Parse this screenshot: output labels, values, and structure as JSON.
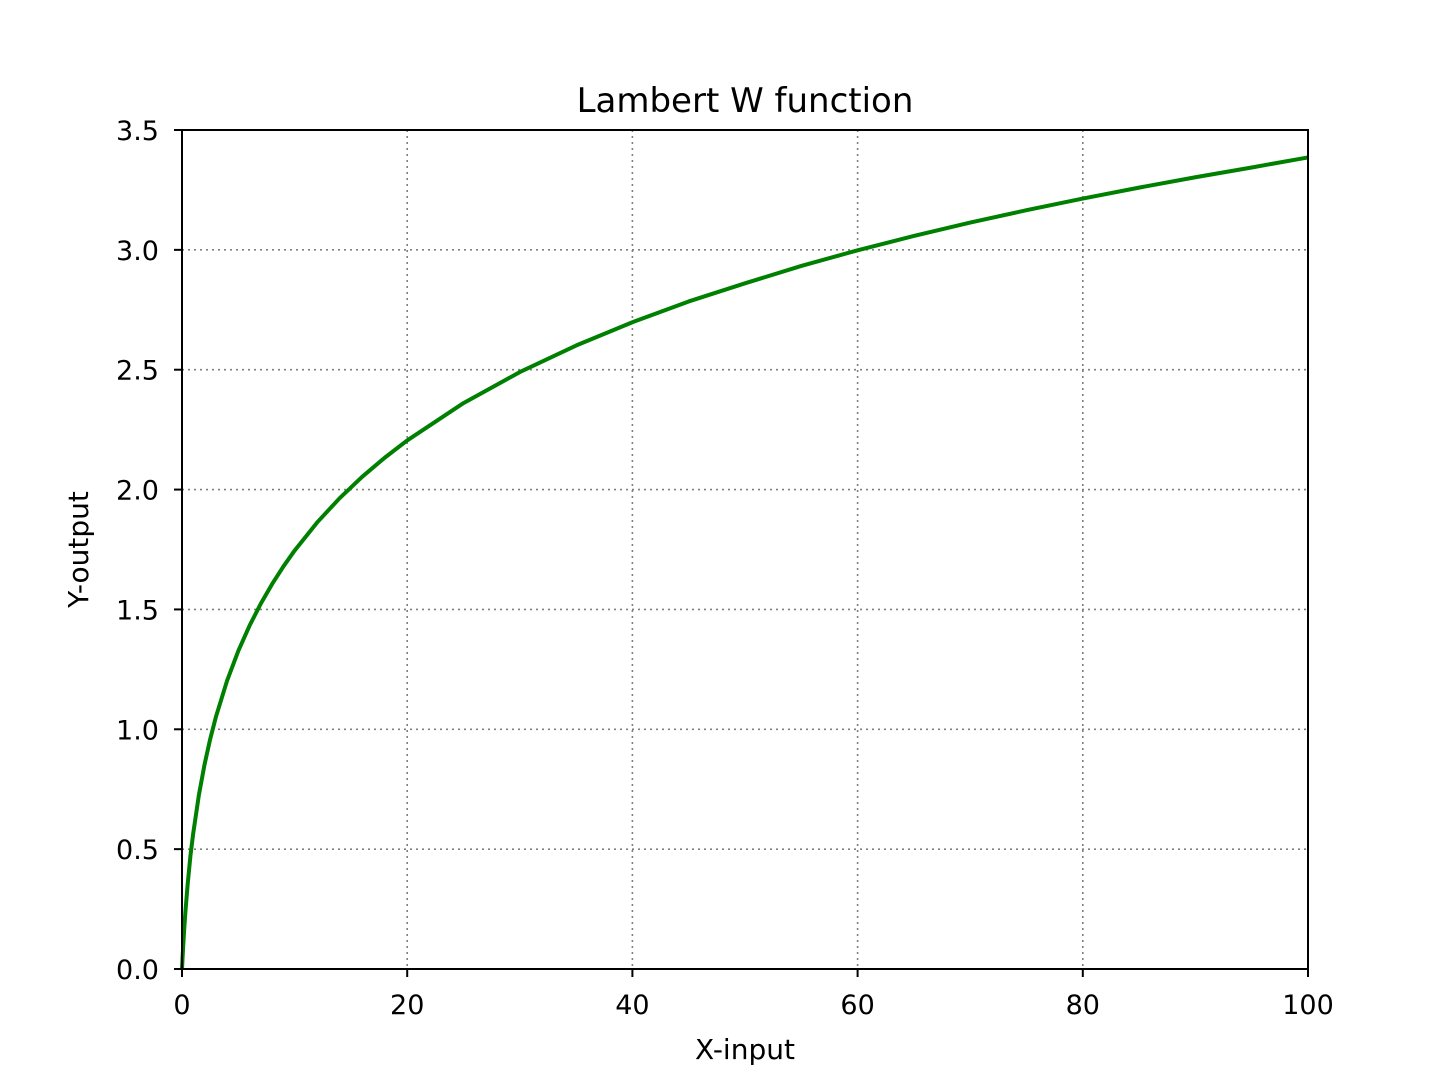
{
  "chart_data": {
    "type": "line",
    "title": "Lambert W function",
    "xlabel": "X-input",
    "ylabel": "Y-output",
    "xlim": [
      0,
      100
    ],
    "ylim": [
      0,
      3.5
    ],
    "xticks": [
      0,
      20,
      40,
      60,
      80,
      100
    ],
    "xtick_labels": [
      "0",
      "20",
      "40",
      "60",
      "80",
      "100"
    ],
    "yticks": [
      0,
      0.5,
      1,
      1.5,
      2,
      2.5,
      3,
      3.5
    ],
    "ytick_labels": [
      "0.0",
      "0.5",
      "1.0",
      "1.5",
      "2.0",
      "2.5",
      "3.0",
      "3.5"
    ],
    "grid": true,
    "grid_style": "dotted",
    "series": [
      {
        "color": "#008000",
        "x": [
          0,
          0.05,
          0.1,
          0.2,
          0.3,
          0.5,
          0.75,
          1,
          1.5,
          2,
          2.5,
          3,
          4,
          5,
          6,
          7,
          8,
          9,
          10,
          12,
          14,
          16,
          18,
          20,
          25,
          30,
          35,
          40,
          45,
          50,
          55,
          60,
          65,
          70,
          75,
          80,
          85,
          90,
          95,
          100
        ],
        "y": [
          0,
          0.0477,
          0.0913,
          0.1689,
          0.2368,
          0.3517,
          0.4728,
          0.5671,
          0.7259,
          0.8526,
          0.9586,
          1.0499,
          1.2022,
          1.3267,
          1.4324,
          1.5243,
          1.6058,
          1.6789,
          1.7455,
          1.8629,
          1.9641,
          2.0532,
          2.1327,
          2.205,
          2.3608,
          2.49,
          2.6009,
          2.6981,
          2.7848,
          2.8605,
          2.9329,
          2.9982,
          3.0582,
          3.1137,
          3.1655,
          3.214,
          3.2597,
          3.3028,
          3.3437,
          3.3856
        ]
      }
    ]
  },
  "colors": {
    "line": "#008000",
    "grid": "#808080",
    "axes": "#000000",
    "background": "#ffffff"
  }
}
